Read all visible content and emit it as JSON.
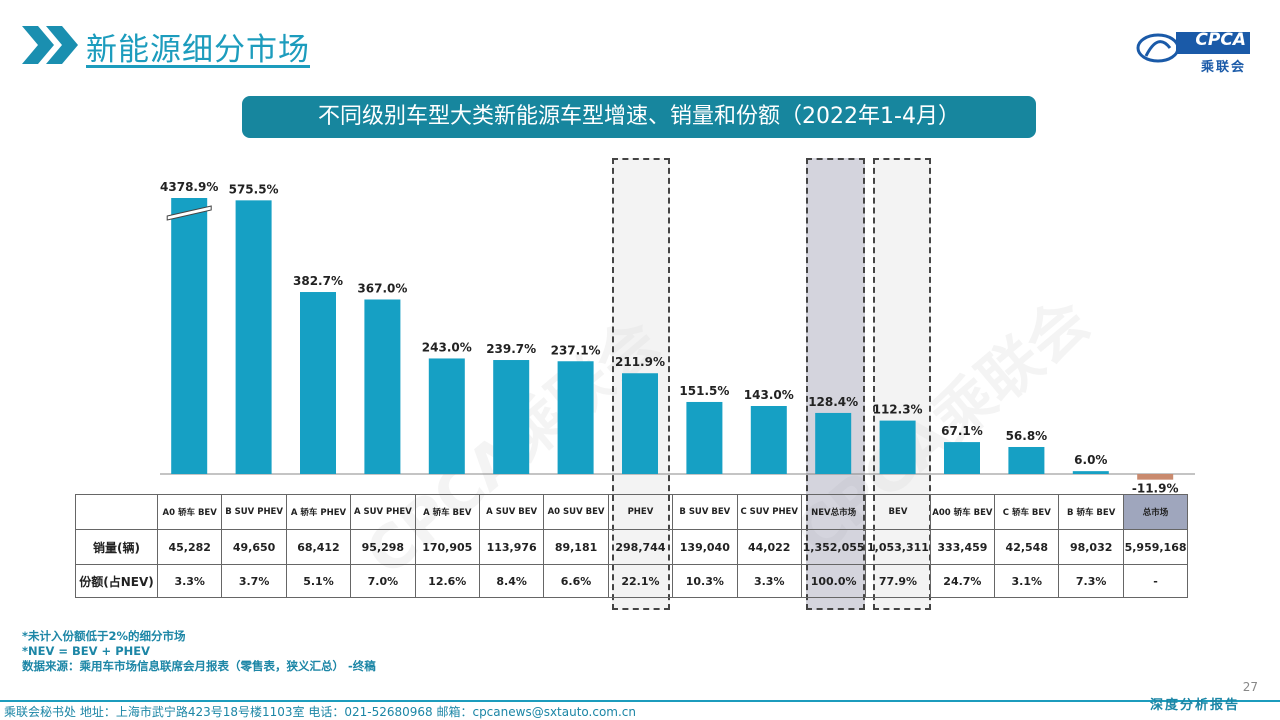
{
  "page": {
    "title": "新能源细分市场",
    "banner": "不同级别车型大类新能源车型增速、销量和份额（2022年1-4月）",
    "logo_text": "CPCA",
    "logo_sub": "乘联会",
    "page_number": "27",
    "notes": [
      "*未计入份额低于2%的细分市场",
      "*NEV = BEV + PHEV",
      "数据来源：乘用车市场信息联席会月报表（零售表，狭义汇总）  -终稿"
    ],
    "footer": "乘联会秘书处   地址：上海市武宁路423号18号楼1103室   电话：021-52680968   邮箱：cpcanews@sxtauto.com.cn",
    "footer_right": "深度分析报告",
    "watermark": "CPCA乘联会",
    "colors": {
      "accent": "#1c9cbd",
      "bar": "#16a0c4",
      "negative_bar": "#c98a6e",
      "banner": "#17869e"
    }
  },
  "chart_data": {
    "type": "bar",
    "categories": [
      "A0 轿车 BEV",
      "B SUV PHEV",
      "A 轿车 PHEV",
      "A SUV PHEV",
      "A 轿车 BEV",
      "A SUV BEV",
      "A0 SUV BEV",
      "PHEV",
      "B SUV BEV",
      "C SUV PHEV",
      "NEV总市场",
      "BEV",
      "A00 轿车 BEV",
      "C 轿车 BEV",
      "B 轿车 BEV",
      "总市场"
    ],
    "growth_values": [
      4378.9,
      575.5,
      382.7,
      367.0,
      243.0,
      239.7,
      237.1,
      211.9,
      151.5,
      143.0,
      128.4,
      112.3,
      67.1,
      56.8,
      6.0,
      -11.9
    ],
    "growth_labels": [
      "4378.9%",
      "575.5%",
      "382.7%",
      "367.0%",
      "243.0%",
      "239.7%",
      "237.1%",
      "211.9%",
      "151.5%",
      "143.0%",
      "128.4%",
      "112.3%",
      "67.1%",
      "56.8%",
      "6.0%",
      "-11.9%"
    ],
    "axis_break": {
      "category": "A0 轿车 BEV"
    },
    "table": {
      "row_labels": [
        "销量(辆)",
        "份额(占NEV)"
      ],
      "sales": [
        "45,282",
        "49,650",
        "68,412",
        "95,298",
        "170,905",
        "113,976",
        "89,181",
        "298,744",
        "139,040",
        "44,022",
        "1,352,055",
        "1,053,311",
        "333,459",
        "42,548",
        "98,032",
        "5,959,168"
      ],
      "share": [
        "3.3%",
        "3.7%",
        "5.1%",
        "7.0%",
        "12.6%",
        "8.4%",
        "6.6%",
        "22.1%",
        "10.3%",
        "3.3%",
        "100.0%",
        "77.9%",
        "24.7%",
        "3.1%",
        "7.3%",
        "-"
      ]
    }
  }
}
